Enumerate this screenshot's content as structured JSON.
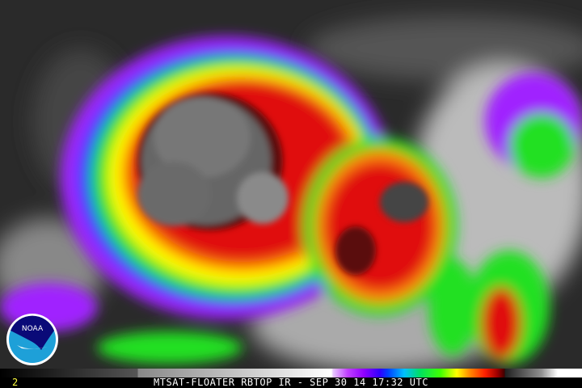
{
  "image": {
    "caption": "MTSAT-FLOATER RBTOP IR - SEP 30 14 17:32 UTC",
    "frame_number": "2",
    "logo": "NOAA",
    "subject": "tropical-cyclone-ir-satellite"
  },
  "colors": {
    "background_gray": "#2a2a2a",
    "cold_cloud_gray": "#7a7a7a",
    "red": "#e01010",
    "orange": "#ff8000",
    "yellow": "#ffff00",
    "green": "#20e020",
    "blue": "#2040ff",
    "purple": "#a020ff",
    "noaa_dark_blue": "#0a0a78",
    "noaa_light_blue": "#1ea0d8",
    "frame_number_color": "#ffff40"
  }
}
